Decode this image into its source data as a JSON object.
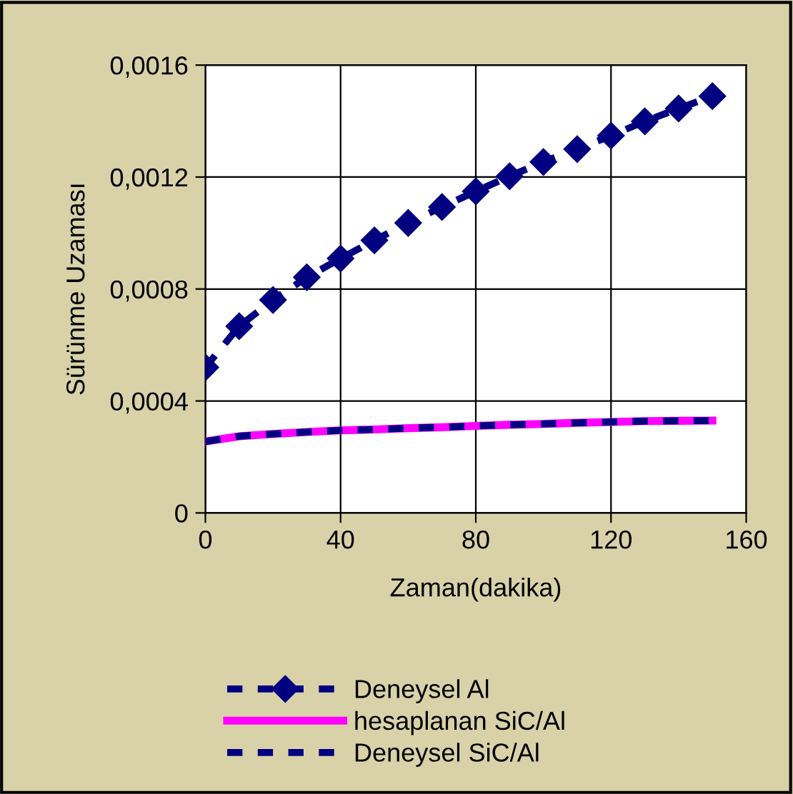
{
  "chart_data": {
    "type": "line",
    "xlabel": "Zaman(dakika)",
    "ylabel": "Sürünme Uzaması",
    "x": [
      0,
      10,
      20,
      30,
      40,
      50,
      60,
      70,
      80,
      90,
      100,
      110,
      120,
      130,
      140,
      150
    ],
    "series": [
      {
        "name": "Deneysel Al",
        "color": "#000080",
        "marker": "diamond",
        "line_style": "dashed",
        "values": [
          0.00052,
          0.000667,
          0.000761,
          0.000842,
          0.000909,
          0.000974,
          0.001036,
          0.001093,
          0.001149,
          0.001203,
          0.001254,
          0.0013,
          0.001348,
          0.001399,
          0.001445,
          0.001489
        ]
      },
      {
        "name": "hesaplanan SiC/Al",
        "color": "#ff00ff",
        "marker": "none",
        "line_style": "solid",
        "values": [
          0.000255,
          0.000274,
          0.000282,
          0.000289,
          0.000295,
          0.000298,
          0.000303,
          0.000306,
          0.000311,
          0.000315,
          0.000318,
          0.000322,
          0.000325,
          0.000328,
          0.000329,
          0.00033
        ]
      },
      {
        "name": "Deneysel SiC/Al",
        "color": "#000080",
        "marker": "none",
        "line_style": "dashed",
        "values": [
          0.000255,
          0.000274,
          0.000282,
          0.000289,
          0.000295,
          0.000298,
          0.000303,
          0.000306,
          0.000311,
          0.000315,
          0.000318,
          0.000322,
          0.000325,
          0.000328,
          0.000329,
          0.00033
        ]
      }
    ],
    "xlim": [
      0,
      160
    ],
    "xticks": [
      0,
      40,
      80,
      120,
      160
    ],
    "ylim": [
      0,
      0.0016
    ],
    "yticks": [
      {
        "value": 0,
        "label": "0"
      },
      {
        "value": 0.0004,
        "label": "0,0004"
      },
      {
        "value": 0.0008,
        "label": "0,0008"
      },
      {
        "value": 0.0012,
        "label": "0,0012"
      },
      {
        "value": 0.0016,
        "label": "0,0016"
      }
    ],
    "grid": true,
    "legend": "bottom"
  }
}
